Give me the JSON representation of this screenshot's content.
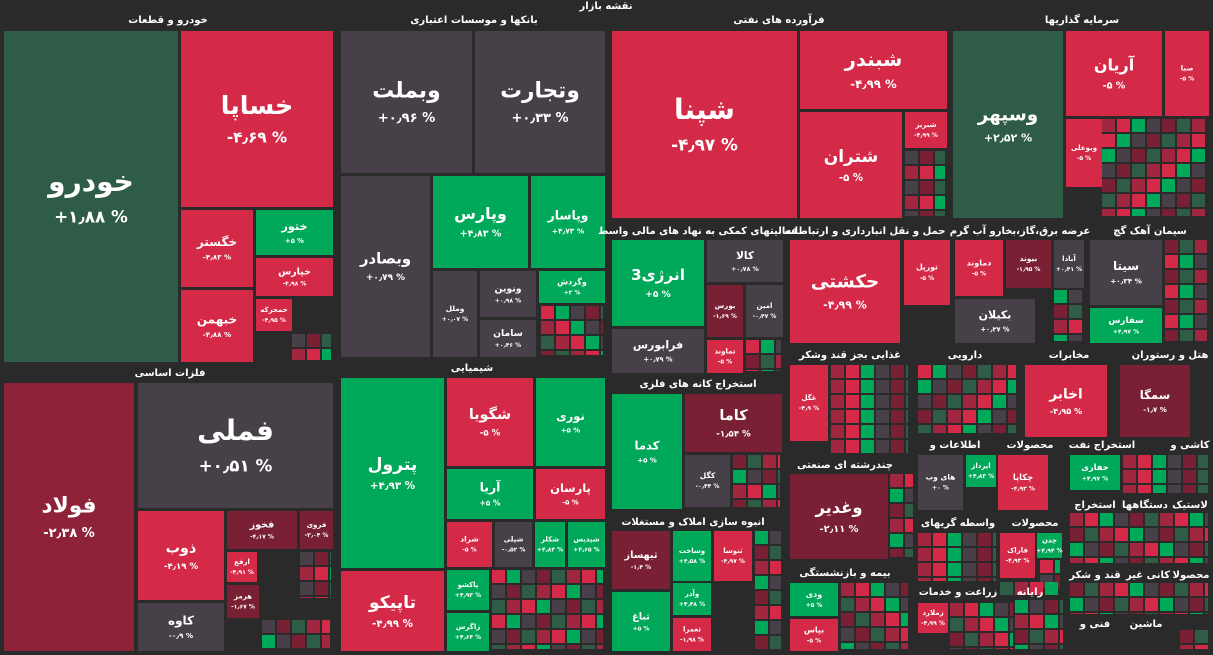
{
  "chart_data": {
    "type": "treemap",
    "title": "نقشه بازار",
    "groups": [
      {
        "title": "خودرو و قطعات",
        "tiles": [
          {
            "name": "خودرو",
            "value": 1.88,
            "value_label": "+۱٫۸۸ %",
            "color": "#2e5c46"
          },
          {
            "name": "خساپا",
            "value": -4.69,
            "value_label": "-۴٫۶۹ %",
            "color": "#d42a48"
          },
          {
            "name": "خگستر",
            "value": -4.83,
            "value_label": "-۴٫۸۳ %",
            "color": "#d42a48"
          },
          {
            "name": "ختور",
            "value": 5,
            "value_label": "+۵ %",
            "color": "#00a85a"
          },
          {
            "name": "خپارس",
            "value": -4.98,
            "value_label": "-۴٫۹۸ %",
            "color": "#d42a48"
          },
          {
            "name": "خبهمن",
            "value": -4.88,
            "value_label": "-۴٫۸۸ %",
            "color": "#d42a48"
          },
          {
            "name": "خمحرکه",
            "value": -4.95,
            "value_label": "-۴٫۹۵ %",
            "color": "#d42a48"
          }
        ]
      },
      {
        "title": "فلزات اساسی",
        "tiles": [
          {
            "name": "فولاد",
            "value": -2.38,
            "value_label": "-۲٫۳۸ %",
            "color": "#8e2238"
          },
          {
            "name": "فملی",
            "value": 0.51,
            "value_label": "+۰٫۵۱ %",
            "color": "#474048"
          },
          {
            "name": "ذوب",
            "value": -4.19,
            "value_label": "-۴٫۱۹ %",
            "color": "#d42a48"
          },
          {
            "name": "فخوز",
            "value": -4.17,
            "value_label": "-۴٫۱۷ %",
            "color": "#7a2035"
          },
          {
            "name": "فروی",
            "value": -3.04,
            "value_label": "-۳٫۰۴ %",
            "color": "#7a2035"
          },
          {
            "name": "ارفع",
            "value": -4.91,
            "value_label": "-۴٫۹۱ %",
            "color": "#d42a48"
          },
          {
            "name": "هرمز",
            "value": -1.67,
            "value_label": "-۱٫۶۷ %",
            "color": "#7a2035"
          },
          {
            "name": "کاوه",
            "value": -0.9,
            "value_label": "-۰٫۹ %",
            "color": "#474048"
          }
        ]
      },
      {
        "title": "بانکها و موسسات اعتباری",
        "tiles": [
          {
            "name": "وبملت",
            "value": 0.96,
            "value_label": "+۰٫۹۶ %",
            "color": "#474048"
          },
          {
            "name": "وتجارت",
            "value": 0.33,
            "value_label": "+۰٫۳۳ %",
            "color": "#474048"
          },
          {
            "name": "وبصادر",
            "value": 0.79,
            "value_label": "+۰٫۷۹ %",
            "color": "#474048"
          },
          {
            "name": "وپارس",
            "value": 4.83,
            "value_label": "+۴٫۸۳ %",
            "color": "#00a85a"
          },
          {
            "name": "وپاسار",
            "value": 4.73,
            "value_label": "+۴٫۷۳ %",
            "color": "#00a85a"
          },
          {
            "name": "وملل",
            "value": 0.07,
            "value_label": "+۰٫۰۷ %",
            "color": "#474048"
          },
          {
            "name": "ونوین",
            "value": 0.98,
            "value_label": "+۰٫۹۸ %",
            "color": "#474048"
          },
          {
            "name": "وگردش",
            "value": 3,
            "value_label": "+۳ %",
            "color": "#00a85a"
          },
          {
            "name": "سامان",
            "value": 0.46,
            "value_label": "+۰٫۴۶ %",
            "color": "#474048"
          }
        ]
      },
      {
        "title": "شیمیایی",
        "tiles": [
          {
            "name": "پترول",
            "value": 4.93,
            "value_label": "+۴٫۹۳ %",
            "color": "#00a85a"
          },
          {
            "name": "شگویا",
            "value": -5,
            "value_label": "-۵ %",
            "color": "#d42a48"
          },
          {
            "name": "نوری",
            "value": 5,
            "value_label": "+۵ %",
            "color": "#00a85a"
          },
          {
            "name": "آریا",
            "value": 5,
            "value_label": "+۵ %",
            "color": "#00a85a"
          },
          {
            "name": "پارسان",
            "value": -5,
            "value_label": "-۵ %",
            "color": "#d42a48"
          },
          {
            "name": "شراد",
            "value": -5,
            "value_label": "-۵ %",
            "color": "#d42a48"
          },
          {
            "name": "شپلی",
            "value": -0.52,
            "value_label": "-۰٫۵۲ %",
            "color": "#474048"
          },
          {
            "name": "شکلر",
            "value": 4.83,
            "value_label": "+۴٫۸۳ %",
            "color": "#00a85a"
          },
          {
            "name": "شپدیس",
            "value": 4.65,
            "value_label": "+۴٫۶۵ %",
            "color": "#00a85a"
          },
          {
            "name": "تاپیکو",
            "value": -4.99,
            "value_label": "-۴٫۹۹ %",
            "color": "#d42a48"
          },
          {
            "name": "پاکشو",
            "value": 4.93,
            "value_label": "+۴٫۹۳ %",
            "color": "#00a85a"
          },
          {
            "name": "زاگرس",
            "value": 4.64,
            "value_label": "+۴٫۶۴ %",
            "color": "#00a85a"
          }
        ]
      },
      {
        "title": "فرآورده های نفتی",
        "tiles": [
          {
            "name": "شپنا",
            "value": -4.97,
            "value_label": "-۴٫۹۷ %",
            "color": "#d42a48"
          },
          {
            "name": "شبندر",
            "value": -4.99,
            "value_label": "-۴٫۹۹ %",
            "color": "#d42a48"
          },
          {
            "name": "شتران",
            "value": -5,
            "value_label": "-۵ %",
            "color": "#d42a48"
          },
          {
            "name": "شبریز",
            "value": -4.99,
            "value_label": "-۴٫۹۹ %",
            "color": "#d42a48"
          }
        ]
      },
      {
        "title": "فعالیتهای کمکی به نهاد های مالی واسط",
        "tiles": [
          {
            "name": "انرژی3",
            "value": 5,
            "value_label": "+۵ %",
            "color": "#00a85a"
          },
          {
            "name": "کالا",
            "value": 0.78,
            "value_label": "+۰٫۷۸ %",
            "color": "#474048"
          },
          {
            "name": "بورس",
            "value": -1.69,
            "value_label": "-۱٫۶۹ %",
            "color": "#7a2035"
          },
          {
            "name": "امین",
            "value": -0.47,
            "value_label": "-۰٫۴۷ %",
            "color": "#474048"
          },
          {
            "name": "فرابورس",
            "value": 0.79,
            "value_label": "+۰٫۷۹ %",
            "color": "#474048"
          },
          {
            "name": "تماوند",
            "value": -5,
            "value_label": "-۵ %",
            "color": "#d42a48"
          }
        ]
      },
      {
        "title": "استخراج کانه های فلزی",
        "tiles": [
          {
            "name": "کدما",
            "value": 5,
            "value_label": "+۵ %",
            "color": "#00a85a"
          },
          {
            "name": "کاما",
            "value": -1.54,
            "value_label": "-۱٫۵۴ %",
            "color": "#7a2035"
          },
          {
            "name": "کگل",
            "value": -0.44,
            "value_label": "-۰٫۴۴ %",
            "color": "#474048"
          }
        ]
      },
      {
        "title": "انبوه سازی املاک و مستغلات",
        "tiles": [
          {
            "name": "ثبهساز",
            "value": -1.4,
            "value_label": "-۱٫۴ %",
            "color": "#7a2035"
          },
          {
            "name": "وساخت",
            "value": 4.58,
            "value_label": "+۴٫۵۸ %",
            "color": "#00a85a"
          },
          {
            "name": "ثنوسا",
            "value": -4.97,
            "value_label": "-۴٫۹۷ %",
            "color": "#d42a48"
          },
          {
            "name": "ثباغ",
            "value": 5,
            "value_label": "+۵ %",
            "color": "#00a85a"
          },
          {
            "name": "وآذر",
            "value": 4.48,
            "value_label": "+۴٫۴۸ %",
            "color": "#00a85a"
          },
          {
            "name": "ثعمرا",
            "value": -1.98,
            "value_label": "-۱٫۹۸ %",
            "color": "#d42a48"
          }
        ]
      },
      {
        "title": "حمل و نقل انبارداری و ارتباطات",
        "tiles": [
          {
            "name": "حکشتی",
            "value": -4.99,
            "value_label": "-۴٫۹۹ %",
            "color": "#d42a48"
          },
          {
            "name": "تورپل",
            "value": -5,
            "value_label": "-۵ %",
            "color": "#d42a48"
          }
        ]
      },
      {
        "title": "غذایی بجز قند وشکر",
        "tiles": [
          {
            "name": "غگل",
            "value": -4.9,
            "value_label": "-۴٫۹ %",
            "color": "#d42a48"
          }
        ]
      },
      {
        "title": "چندرشته ای صنعتی",
        "tiles": [
          {
            "name": "وغدیر",
            "value": -2.11,
            "value_label": "-۲٫۱۱ %",
            "color": "#7a2035"
          }
        ]
      },
      {
        "title": "بیمه و بازنشستگی",
        "tiles": [
          {
            "name": "ودی",
            "value": 5,
            "value_label": "+۵ %",
            "color": "#00a85a"
          },
          {
            "name": "بپاس",
            "value": -5,
            "value_label": "-۵ %",
            "color": "#d42a48"
          }
        ]
      },
      {
        "title": "سرمایه گذاریها",
        "tiles": [
          {
            "name": "وسپهر",
            "value": 2.52,
            "value_label": "+۲٫۵۲ %",
            "color": "#2e5c46"
          },
          {
            "name": "آریان",
            "value": -5,
            "value_label": "-۵ %",
            "color": "#d42a48"
          },
          {
            "name": "صبا",
            "value": -5,
            "value_label": "-۵ %",
            "color": "#d42a48"
          },
          {
            "name": "وبوعلی",
            "value": -5,
            "value_label": "-۵ %",
            "color": "#d42a48"
          }
        ]
      },
      {
        "title": "عرضه برق،گاز،بخارو آب گرم",
        "tiles": [
          {
            "name": "دماوند",
            "value": -5,
            "value_label": "-۵ %",
            "color": "#d42a48"
          },
          {
            "name": "بیوند",
            "value": -1.95,
            "value_label": "-۱٫۹۵ %",
            "color": "#7a2035"
          },
          {
            "name": "آبادا",
            "value": 0.41,
            "value_label": "+۰٫۴۱ %",
            "color": "#474048"
          },
          {
            "name": "بکیلان",
            "value": 0.37,
            "value_label": "+۰٫۳۷ %",
            "color": "#474048"
          }
        ]
      },
      {
        "title": "سیمان آهک گچ",
        "tiles": [
          {
            "name": "سیتا",
            "value": 0.34,
            "value_label": "+۰٫۳۴ %",
            "color": "#474048"
          },
          {
            "name": "سفارس",
            "value": 4.97,
            "value_label": "+۴٫۹۷ %",
            "color": "#00a85a"
          }
        ]
      },
      {
        "title": "مخابرات",
        "tiles": [
          {
            "name": "اخابر",
            "value": -4.95,
            "value_label": "-۴٫۹۵ %",
            "color": "#d42a48"
          }
        ]
      },
      {
        "title": "هتل و رستوران",
        "tiles": [
          {
            "name": "سمگا",
            "value": -1.7,
            "value_label": "-۱٫۷ %",
            "color": "#7a2035"
          }
        ]
      },
      {
        "title": "دارویی",
        "tiles": []
      },
      {
        "title": "اطلاعات و",
        "tiles": [
          {
            "name": "های وب",
            "value": 0,
            "value_label": "+۰ %",
            "color": "#474048"
          },
          {
            "name": "اپرداز",
            "value": 4.83,
            "value_label": "+۴٫۸۳ %",
            "color": "#00a85a"
          }
        ]
      },
      {
        "title": "محصولات",
        "tiles": [
          {
            "name": "چکاپا",
            "value": -4.93,
            "value_label": "-۴٫۹۳ %",
            "color": "#d42a48"
          }
        ]
      },
      {
        "title": "استخراج نفت",
        "tiles": [
          {
            "name": "حفاری",
            "value": 4.97,
            "value_label": "+۴٫۹۷ %",
            "color": "#00a85a"
          }
        ]
      },
      {
        "title": "کاشی و",
        "tiles": []
      },
      {
        "title": "واسطه گریهای",
        "tiles": []
      },
      {
        "title": "محصولات",
        "tiles": [
          {
            "name": "فاراک",
            "value": -4.93,
            "value_label": "-۴٫۹۳ %",
            "color": "#d42a48"
          },
          {
            "name": "چدن",
            "value": 4.94,
            "value_label": "+۴٫۹۴ %",
            "color": "#00a85a"
          }
        ]
      },
      {
        "title": "استخراج",
        "tiles": []
      },
      {
        "title": "دستگاهها",
        "tiles": []
      },
      {
        "title": "لاستیک",
        "tiles": []
      },
      {
        "title": "قند و شکر",
        "tiles": []
      },
      {
        "title": "کانی غیر",
        "tiles": []
      },
      {
        "title": "محصولا",
        "tiles": []
      },
      {
        "title": "رایانه",
        "tiles": []
      },
      {
        "title": "زراعت و خدمات",
        "tiles": [
          {
            "name": "زملارد",
            "value": -4.99,
            "value_label": "-۴٫۹۹ %",
            "color": "#d42a48"
          }
        ]
      },
      {
        "title": "فنی و",
        "tiles": []
      },
      {
        "title": "ماشین",
        "tiles": []
      }
    ]
  }
}
